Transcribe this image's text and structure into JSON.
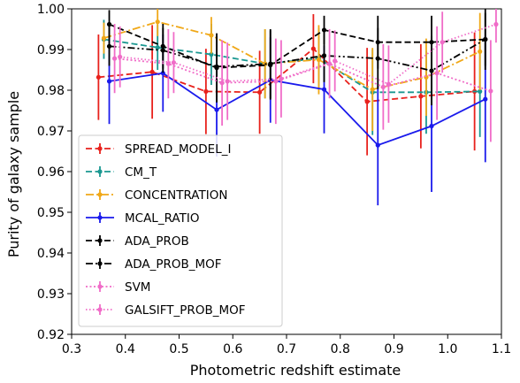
{
  "chart_data": {
    "type": "line",
    "title": "",
    "xlabel": "Photometric redshift estimate",
    "ylabel": "Purity of galaxy sample",
    "xlim": [
      0.3,
      1.1
    ],
    "ylim": [
      0.92,
      1.0
    ],
    "xticks": [
      0.3,
      0.4,
      0.5,
      0.6,
      0.7,
      0.8,
      0.9,
      1.0,
      1.1
    ],
    "yticks": [
      0.92,
      0.93,
      0.94,
      0.95,
      0.96,
      0.97,
      0.98,
      0.99,
      1.0
    ],
    "xtick_labels": [
      "0.3",
      "0.4",
      "0.5",
      "0.6",
      "0.7",
      "0.8",
      "0.9",
      "1.0",
      "1.1"
    ],
    "ytick_labels": [
      "0.92",
      "0.93",
      "0.94",
      "0.95",
      "0.96",
      "0.97",
      "0.98",
      "0.99",
      "1.00"
    ],
    "grid": false,
    "legend_placement": "lower-left",
    "series": [
      {
        "name": "SPREAD_MODEL_I",
        "color": "#e8211c",
        "dash": "dashed",
        "x": [
          0.35,
          0.45,
          0.55,
          0.65,
          0.75,
          0.85,
          0.95,
          1.05
        ],
        "y": [
          0.9832,
          0.9845,
          0.9797,
          0.9795,
          0.9902,
          0.9772,
          0.9785,
          0.9797
        ],
        "err": [
          0.0105,
          0.0115,
          0.0105,
          0.0102,
          0.0085,
          0.0132,
          0.0128,
          0.0145
        ]
      },
      {
        "name": "CM_T",
        "color": "#1a9891",
        "dash": "dashed",
        "x": [
          0.36,
          0.46,
          0.56,
          0.66,
          0.76,
          0.86,
          0.96,
          1.06
        ],
        "y": [
          0.9925,
          0.9905,
          0.9888,
          0.9865,
          0.9878,
          0.9795,
          0.9795,
          0.9797
        ],
        "err": [
          0.0048,
          0.0055,
          0.0075,
          0.0085,
          0.0075,
          0.0105,
          0.0102,
          0.0112
        ]
      },
      {
        "name": "CONCENTRATION",
        "color": "#f0a818",
        "dash": "dashdot",
        "x": [
          0.36,
          0.46,
          0.56,
          0.66,
          0.76,
          0.86,
          0.96,
          1.06
        ],
        "y": [
          0.9928,
          0.9968,
          0.9935,
          0.9865,
          0.9875,
          0.9802,
          0.9832,
          0.9895
        ],
        "err": [
          0.0038,
          0.0035,
          0.0045,
          0.0085,
          0.0085,
          0.0102,
          0.0095,
          0.0095
        ]
      },
      {
        "name": "MCAL_RATIO",
        "color": "#1a1aec",
        "dash": "solid",
        "x": [
          0.37,
          0.47,
          0.57,
          0.67,
          0.77,
          0.87,
          0.97,
          1.07
        ],
        "y": [
          0.9822,
          0.9842,
          0.9752,
          0.9825,
          0.9802,
          0.9665,
          0.9712,
          0.9778
        ],
        "err": [
          0.0105,
          0.0095,
          0.0115,
          0.0105,
          0.0108,
          0.0148,
          0.0162,
          0.0155
        ]
      },
      {
        "name": "ADA_PROB",
        "color": "#000000",
        "dash": "dashed",
        "x": [
          0.37,
          0.47,
          0.57,
          0.67,
          0.77,
          0.87,
          0.97,
          1.07
        ],
        "y": [
          0.9962,
          0.9908,
          0.9855,
          0.9862,
          0.9948,
          0.9918,
          0.9918,
          0.9925
        ],
        "err": [
          0.0035,
          0.0055,
          0.0085,
          0.0085,
          0.0035,
          0.0065,
          0.0065,
          0.0075
        ]
      },
      {
        "name": "ADA_PROB_MOF",
        "color": "#000000",
        "dash": "dashdotdot",
        "x": [
          0.37,
          0.47,
          0.57,
          0.67,
          0.77,
          0.87,
          0.97,
          1.07
        ],
        "y": [
          0.9908,
          0.9898,
          0.9858,
          0.9865,
          0.9885,
          0.9878,
          0.9848,
          0.9925
        ],
        "err": [
          0.0048,
          0.0055,
          0.0075,
          0.0085,
          0.0065,
          0.0075,
          0.0085,
          0.0065
        ]
      },
      {
        "name": "SVM",
        "color": "#f06cc8",
        "dash": "dotted",
        "x": [
          0.38,
          0.48,
          0.58,
          0.68,
          0.78,
          0.88,
          0.98,
          1.08
        ],
        "y": [
          0.9878,
          0.9865,
          0.9818,
          0.9822,
          0.9865,
          0.9808,
          0.9842,
          0.9798
        ],
        "err": [
          0.0085,
          0.0085,
          0.0105,
          0.0105,
          0.0085,
          0.0105,
          0.0115,
          0.0125
        ]
      },
      {
        "name": "GALSIFT_PROB_MOF",
        "color": "#f06cc8",
        "dash": "densedot",
        "x": [
          0.39,
          0.49,
          0.59,
          0.69,
          0.79,
          0.89,
          0.99,
          1.09
        ],
        "y": [
          0.9882,
          0.9868,
          0.9822,
          0.9828,
          0.9872,
          0.9815,
          0.9918,
          0.9962
        ],
        "err": [
          0.0075,
          0.0075,
          0.0095,
          0.0095,
          0.0075,
          0.0095,
          0.0075,
          0.0045
        ]
      }
    ]
  }
}
